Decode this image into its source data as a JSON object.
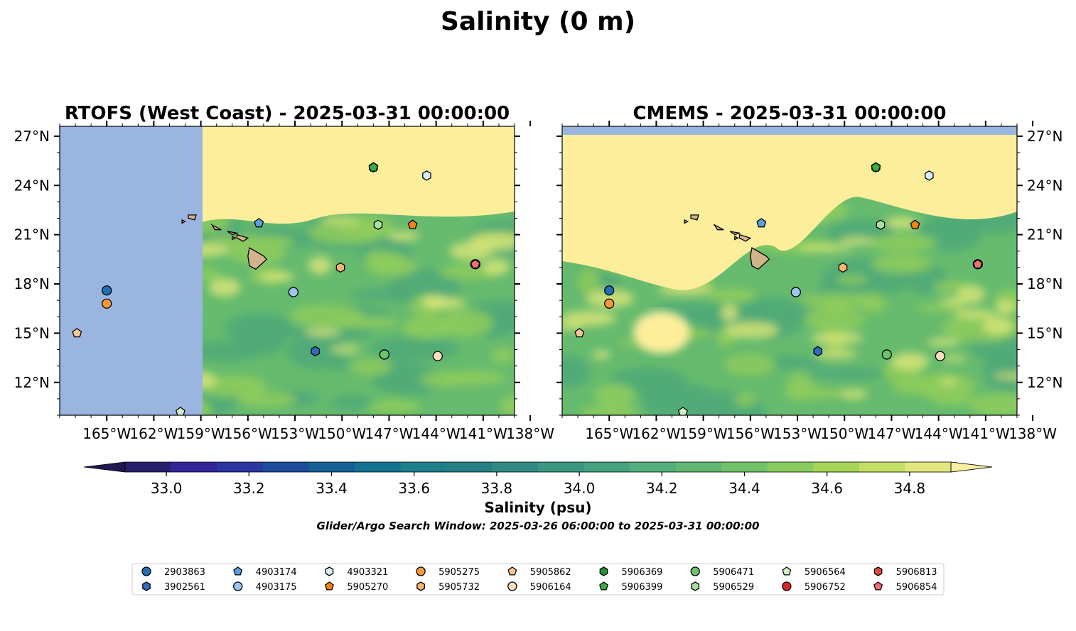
{
  "figure": {
    "suptitle": "Salinity (0 m)",
    "colorbar_label": "Salinity (psu)",
    "search_window": "Glider/Argo Search Window: 2025-03-26 06:00:00 to 2025-03-31 00:00:00"
  },
  "panels": [
    {
      "title": "RTOFS (West Coast) - 2025-03-31 00:00:00",
      "y_axis_side": "left",
      "data_west_limit": "157.5°W"
    },
    {
      "title": "CMEMS - 2025-03-31 00:00:00",
      "y_axis_side": "right",
      "data_north_limit": "27.1°N"
    }
  ],
  "axes": {
    "lon_range": [
      -168,
      -139
    ],
    "lat_range": [
      10,
      27.6
    ],
    "lon_ticks": [
      -165,
      -162,
      -159,
      -156,
      -153,
      -150,
      -147,
      -144,
      -141,
      -138
    ],
    "lon_tick_labels": [
      "165°W",
      "162°W",
      "159°W",
      "156°W",
      "153°W",
      "150°W",
      "147°W",
      "144°W",
      "141°W",
      "138°W"
    ],
    "lat_ticks": [
      12,
      15,
      18,
      21,
      24,
      27
    ],
    "lat_tick_labels": [
      "12°N",
      "15°N",
      "18°N",
      "21°N",
      "24°N",
      "27°N"
    ]
  },
  "colorbar": {
    "min": 32.9,
    "max": 34.9,
    "extend": "both",
    "ticks": [
      33.0,
      33.2,
      33.4,
      33.6,
      33.8,
      34.0,
      34.2,
      34.4,
      34.6,
      34.8
    ],
    "tick_labels": [
      "33.0",
      "33.2",
      "33.4",
      "33.6",
      "33.8",
      "34.0",
      "34.2",
      "34.4",
      "34.6",
      "34.8"
    ],
    "colors": [
      "#2a1f6e",
      "#32259a",
      "#2a35a0",
      "#1f4b9c",
      "#155f96",
      "#14718f",
      "#1c7f8a",
      "#277f86",
      "#318a83",
      "#3a9782",
      "#45a27f",
      "#52ae7a",
      "#60b872",
      "#71c26a",
      "#88cc5e",
      "#a6d658",
      "#c4e064",
      "#e2e880"
    ],
    "under_color": "#231752",
    "over_color": "#fdeea0"
  },
  "map_colors": {
    "ocean_nodata": "#99b5e0",
    "land": "#d2b48c",
    "field_high": "#fdee9c",
    "field_mid": "#d6e478",
    "field_low": "#8fcc5c",
    "field_base": "#66bb6e",
    "field_deep": "#4faa78"
  },
  "floats": [
    {
      "id": "2903863",
      "lon": -165.0,
      "lat": 17.6,
      "marker": "circle",
      "color": "#1f6fb4"
    },
    {
      "id": "3902561",
      "lon": -151.7,
      "lat": 13.9,
      "marker": "hexagon",
      "color": "#2f6ec0"
    },
    {
      "id": "4903174",
      "lon": -155.3,
      "lat": 21.7,
      "marker": "pentagon",
      "color": "#5aa0e0"
    },
    {
      "id": "4903175",
      "lon": -153.1,
      "lat": 17.5,
      "marker": "circle",
      "color": "#9cc8f0"
    },
    {
      "id": "4903321",
      "lon": -144.6,
      "lat": 24.6,
      "marker": "hexagon",
      "color": "#d8ecfb"
    },
    {
      "id": "5905270",
      "lon": -145.5,
      "lat": 21.6,
      "marker": "pentagon",
      "color": "#f5820d"
    },
    {
      "id": "5905275",
      "lon": -165.0,
      "lat": 16.8,
      "marker": "circle",
      "color": "#f89a3a"
    },
    {
      "id": "5905732",
      "lon": -150.1,
      "lat": 19.0,
      "marker": "hexagon",
      "color": "#fbb66e"
    },
    {
      "id": "5905862",
      "lon": -166.9,
      "lat": 15.0,
      "marker": "pentagon",
      "color": "#fbc795"
    },
    {
      "id": "5906164",
      "lon": -143.9,
      "lat": 13.6,
      "marker": "circle",
      "color": "#fde0c0"
    },
    {
      "id": "5906369",
      "lon": -148.0,
      "lat": 25.1,
      "marker": "hexagon",
      "color": "#22962e"
    },
    {
      "id": "5906399",
      "lon": -148.0,
      "lat": 25.1,
      "marker": "pentagon",
      "color": "#3cae3c"
    },
    {
      "id": "5906471",
      "lon": -147.3,
      "lat": 13.7,
      "marker": "circle",
      "color": "#6cc46c"
    },
    {
      "id": "5906529",
      "lon": -147.7,
      "lat": 21.6,
      "marker": "hexagon",
      "color": "#a8e0a0"
    },
    {
      "id": "5906564",
      "lon": -160.3,
      "lat": 10.2,
      "marker": "pentagon",
      "color": "#d4f2cc"
    },
    {
      "id": "5906752",
      "lon": -141.5,
      "lat": 19.2,
      "marker": "circle",
      "color": "#d62728"
    },
    {
      "id": "5906813",
      "lon": -141.5,
      "lat": 19.2,
      "marker": "hexagon",
      "color": "#e5483a"
    },
    {
      "id": "5906854",
      "lon": -141.5,
      "lat": 19.2,
      "marker": "pentagon",
      "color": "#f07070"
    }
  ],
  "legend_columns": 9
}
